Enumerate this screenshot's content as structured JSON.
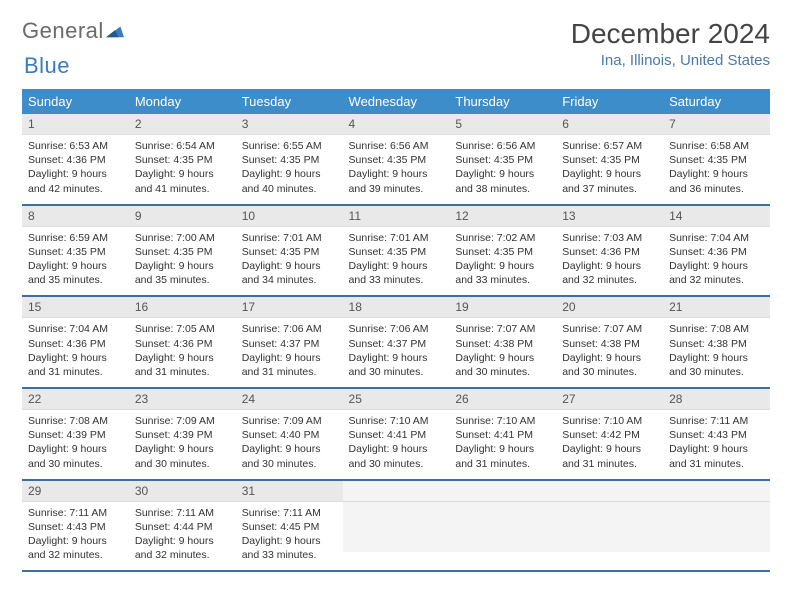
{
  "logo": {
    "part1": "General",
    "part2": "Blue"
  },
  "title": "December 2024",
  "location": "Ina, Illinois, United States",
  "colors": {
    "header_bg": "#3c8dca",
    "header_text": "#ffffff",
    "daynum_bg": "#e9e9e9",
    "row_border": "#3c6fa0",
    "location_text": "#4a7aa8",
    "logo_gray": "#6a6a6a"
  },
  "day_headers": [
    "Sunday",
    "Monday",
    "Tuesday",
    "Wednesday",
    "Thursday",
    "Friday",
    "Saturday"
  ],
  "weeks": [
    [
      {
        "n": "1",
        "sr": "6:53 AM",
        "ss": "4:36 PM",
        "dl": "9 hours and 42 minutes."
      },
      {
        "n": "2",
        "sr": "6:54 AM",
        "ss": "4:35 PM",
        "dl": "9 hours and 41 minutes."
      },
      {
        "n": "3",
        "sr": "6:55 AM",
        "ss": "4:35 PM",
        "dl": "9 hours and 40 minutes."
      },
      {
        "n": "4",
        "sr": "6:56 AM",
        "ss": "4:35 PM",
        "dl": "9 hours and 39 minutes."
      },
      {
        "n": "5",
        "sr": "6:56 AM",
        "ss": "4:35 PM",
        "dl": "9 hours and 38 minutes."
      },
      {
        "n": "6",
        "sr": "6:57 AM",
        "ss": "4:35 PM",
        "dl": "9 hours and 37 minutes."
      },
      {
        "n": "7",
        "sr": "6:58 AM",
        "ss": "4:35 PM",
        "dl": "9 hours and 36 minutes."
      }
    ],
    [
      {
        "n": "8",
        "sr": "6:59 AM",
        "ss": "4:35 PM",
        "dl": "9 hours and 35 minutes."
      },
      {
        "n": "9",
        "sr": "7:00 AM",
        "ss": "4:35 PM",
        "dl": "9 hours and 35 minutes."
      },
      {
        "n": "10",
        "sr": "7:01 AM",
        "ss": "4:35 PM",
        "dl": "9 hours and 34 minutes."
      },
      {
        "n": "11",
        "sr": "7:01 AM",
        "ss": "4:35 PM",
        "dl": "9 hours and 33 minutes."
      },
      {
        "n": "12",
        "sr": "7:02 AM",
        "ss": "4:35 PM",
        "dl": "9 hours and 33 minutes."
      },
      {
        "n": "13",
        "sr": "7:03 AM",
        "ss": "4:36 PM",
        "dl": "9 hours and 32 minutes."
      },
      {
        "n": "14",
        "sr": "7:04 AM",
        "ss": "4:36 PM",
        "dl": "9 hours and 32 minutes."
      }
    ],
    [
      {
        "n": "15",
        "sr": "7:04 AM",
        "ss": "4:36 PM",
        "dl": "9 hours and 31 minutes."
      },
      {
        "n": "16",
        "sr": "7:05 AM",
        "ss": "4:36 PM",
        "dl": "9 hours and 31 minutes."
      },
      {
        "n": "17",
        "sr": "7:06 AM",
        "ss": "4:37 PM",
        "dl": "9 hours and 31 minutes."
      },
      {
        "n": "18",
        "sr": "7:06 AM",
        "ss": "4:37 PM",
        "dl": "9 hours and 30 minutes."
      },
      {
        "n": "19",
        "sr": "7:07 AM",
        "ss": "4:38 PM",
        "dl": "9 hours and 30 minutes."
      },
      {
        "n": "20",
        "sr": "7:07 AM",
        "ss": "4:38 PM",
        "dl": "9 hours and 30 minutes."
      },
      {
        "n": "21",
        "sr": "7:08 AM",
        "ss": "4:38 PM",
        "dl": "9 hours and 30 minutes."
      }
    ],
    [
      {
        "n": "22",
        "sr": "7:08 AM",
        "ss": "4:39 PM",
        "dl": "9 hours and 30 minutes."
      },
      {
        "n": "23",
        "sr": "7:09 AM",
        "ss": "4:39 PM",
        "dl": "9 hours and 30 minutes."
      },
      {
        "n": "24",
        "sr": "7:09 AM",
        "ss": "4:40 PM",
        "dl": "9 hours and 30 minutes."
      },
      {
        "n": "25",
        "sr": "7:10 AM",
        "ss": "4:41 PM",
        "dl": "9 hours and 30 minutes."
      },
      {
        "n": "26",
        "sr": "7:10 AM",
        "ss": "4:41 PM",
        "dl": "9 hours and 31 minutes."
      },
      {
        "n": "27",
        "sr": "7:10 AM",
        "ss": "4:42 PM",
        "dl": "9 hours and 31 minutes."
      },
      {
        "n": "28",
        "sr": "7:11 AM",
        "ss": "4:43 PM",
        "dl": "9 hours and 31 minutes."
      }
    ],
    [
      {
        "n": "29",
        "sr": "7:11 AM",
        "ss": "4:43 PM",
        "dl": "9 hours and 32 minutes."
      },
      {
        "n": "30",
        "sr": "7:11 AM",
        "ss": "4:44 PM",
        "dl": "9 hours and 32 minutes."
      },
      {
        "n": "31",
        "sr": "7:11 AM",
        "ss": "4:45 PM",
        "dl": "9 hours and 33 minutes."
      },
      null,
      null,
      null,
      null
    ]
  ],
  "labels": {
    "sunrise": "Sunrise: ",
    "sunset": "Sunset: ",
    "daylight": "Daylight: "
  }
}
